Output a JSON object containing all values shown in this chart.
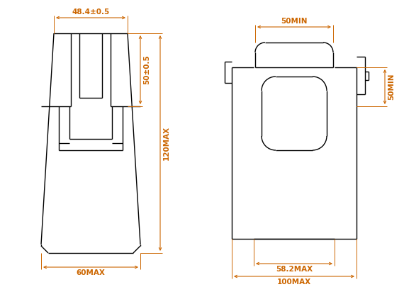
{
  "bg_color": "#ffffff",
  "line_color": "#000000",
  "dim_color": "#cc6600",
  "figsize": [
    5.7,
    4.05
  ],
  "dpi": 100,
  "left_view": {
    "labels": {
      "top_width": "48.4±0.5",
      "side_height": "50±0.5",
      "total_height": "120MAX",
      "bottom_width": "60MAX"
    }
  },
  "right_view": {
    "labels": {
      "top_width": "50MIN",
      "side_height": "50MIN",
      "bottom_inner": "58.2MAX",
      "bottom_outer": "100MAX"
    }
  }
}
